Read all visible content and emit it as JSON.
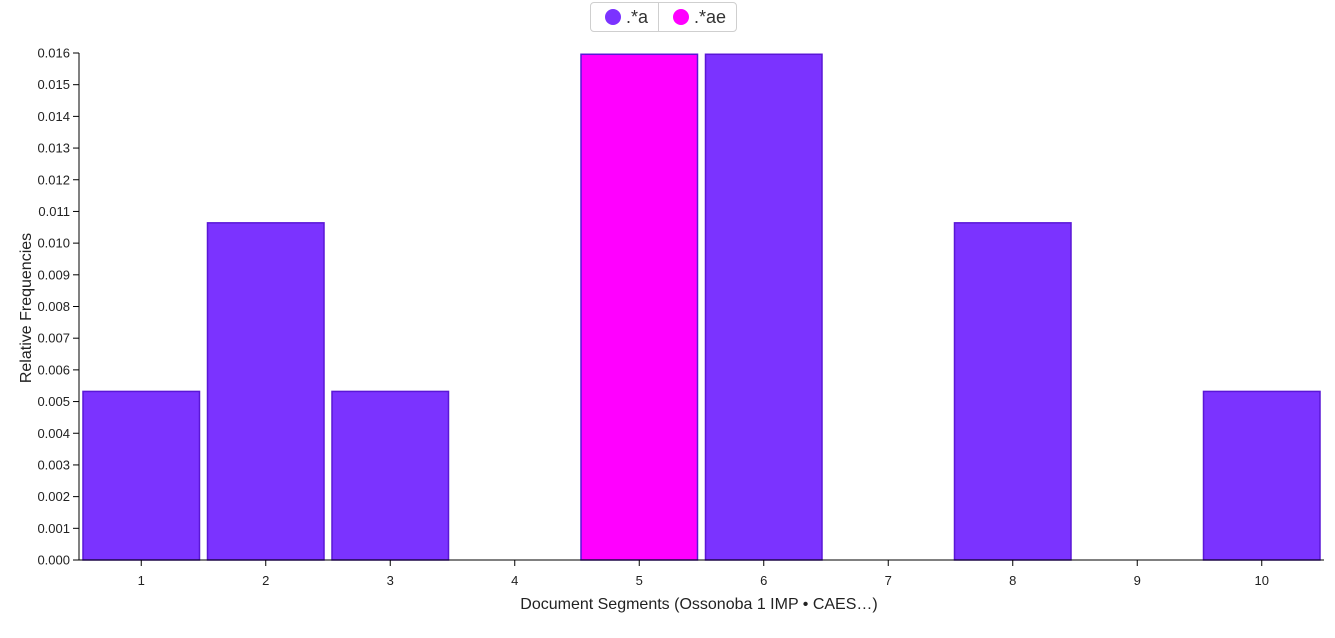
{
  "chart_data": {
    "type": "bar",
    "categories": [
      "1",
      "2",
      "3",
      "4",
      "5",
      "6",
      "7",
      "8",
      "9",
      "10"
    ],
    "values": [
      0.00532,
      0.01064,
      0.00532,
      0,
      0.01596,
      0.01596,
      0,
      0.01064,
      0,
      0.00532
    ],
    "bar_series": [
      ".*a",
      ".*a",
      ".*a",
      ".*a",
      ".*ae",
      ".*a",
      ".*a",
      ".*a",
      ".*a",
      ".*a"
    ],
    "series": [
      {
        "name": ".*a",
        "color": "#7b33ff"
      },
      {
        "name": ".*ae",
        "color": "#ff00ff"
      }
    ],
    "xlabel": "Document Segments (Ossonoba 1 IMP • CAES…)",
    "ylabel": "Relative Frequencies",
    "ylim": [
      0,
      0.016
    ],
    "yticks": [
      "0.000",
      "0.001",
      "0.002",
      "0.003",
      "0.004",
      "0.005",
      "0.006",
      "0.007",
      "0.008",
      "0.009",
      "0.010",
      "0.011",
      "0.012",
      "0.013",
      "0.014",
      "0.015",
      "0.016"
    ],
    "grid": false,
    "legend_position": "top-center",
    "bar_stroke": "#5a17d6"
  }
}
